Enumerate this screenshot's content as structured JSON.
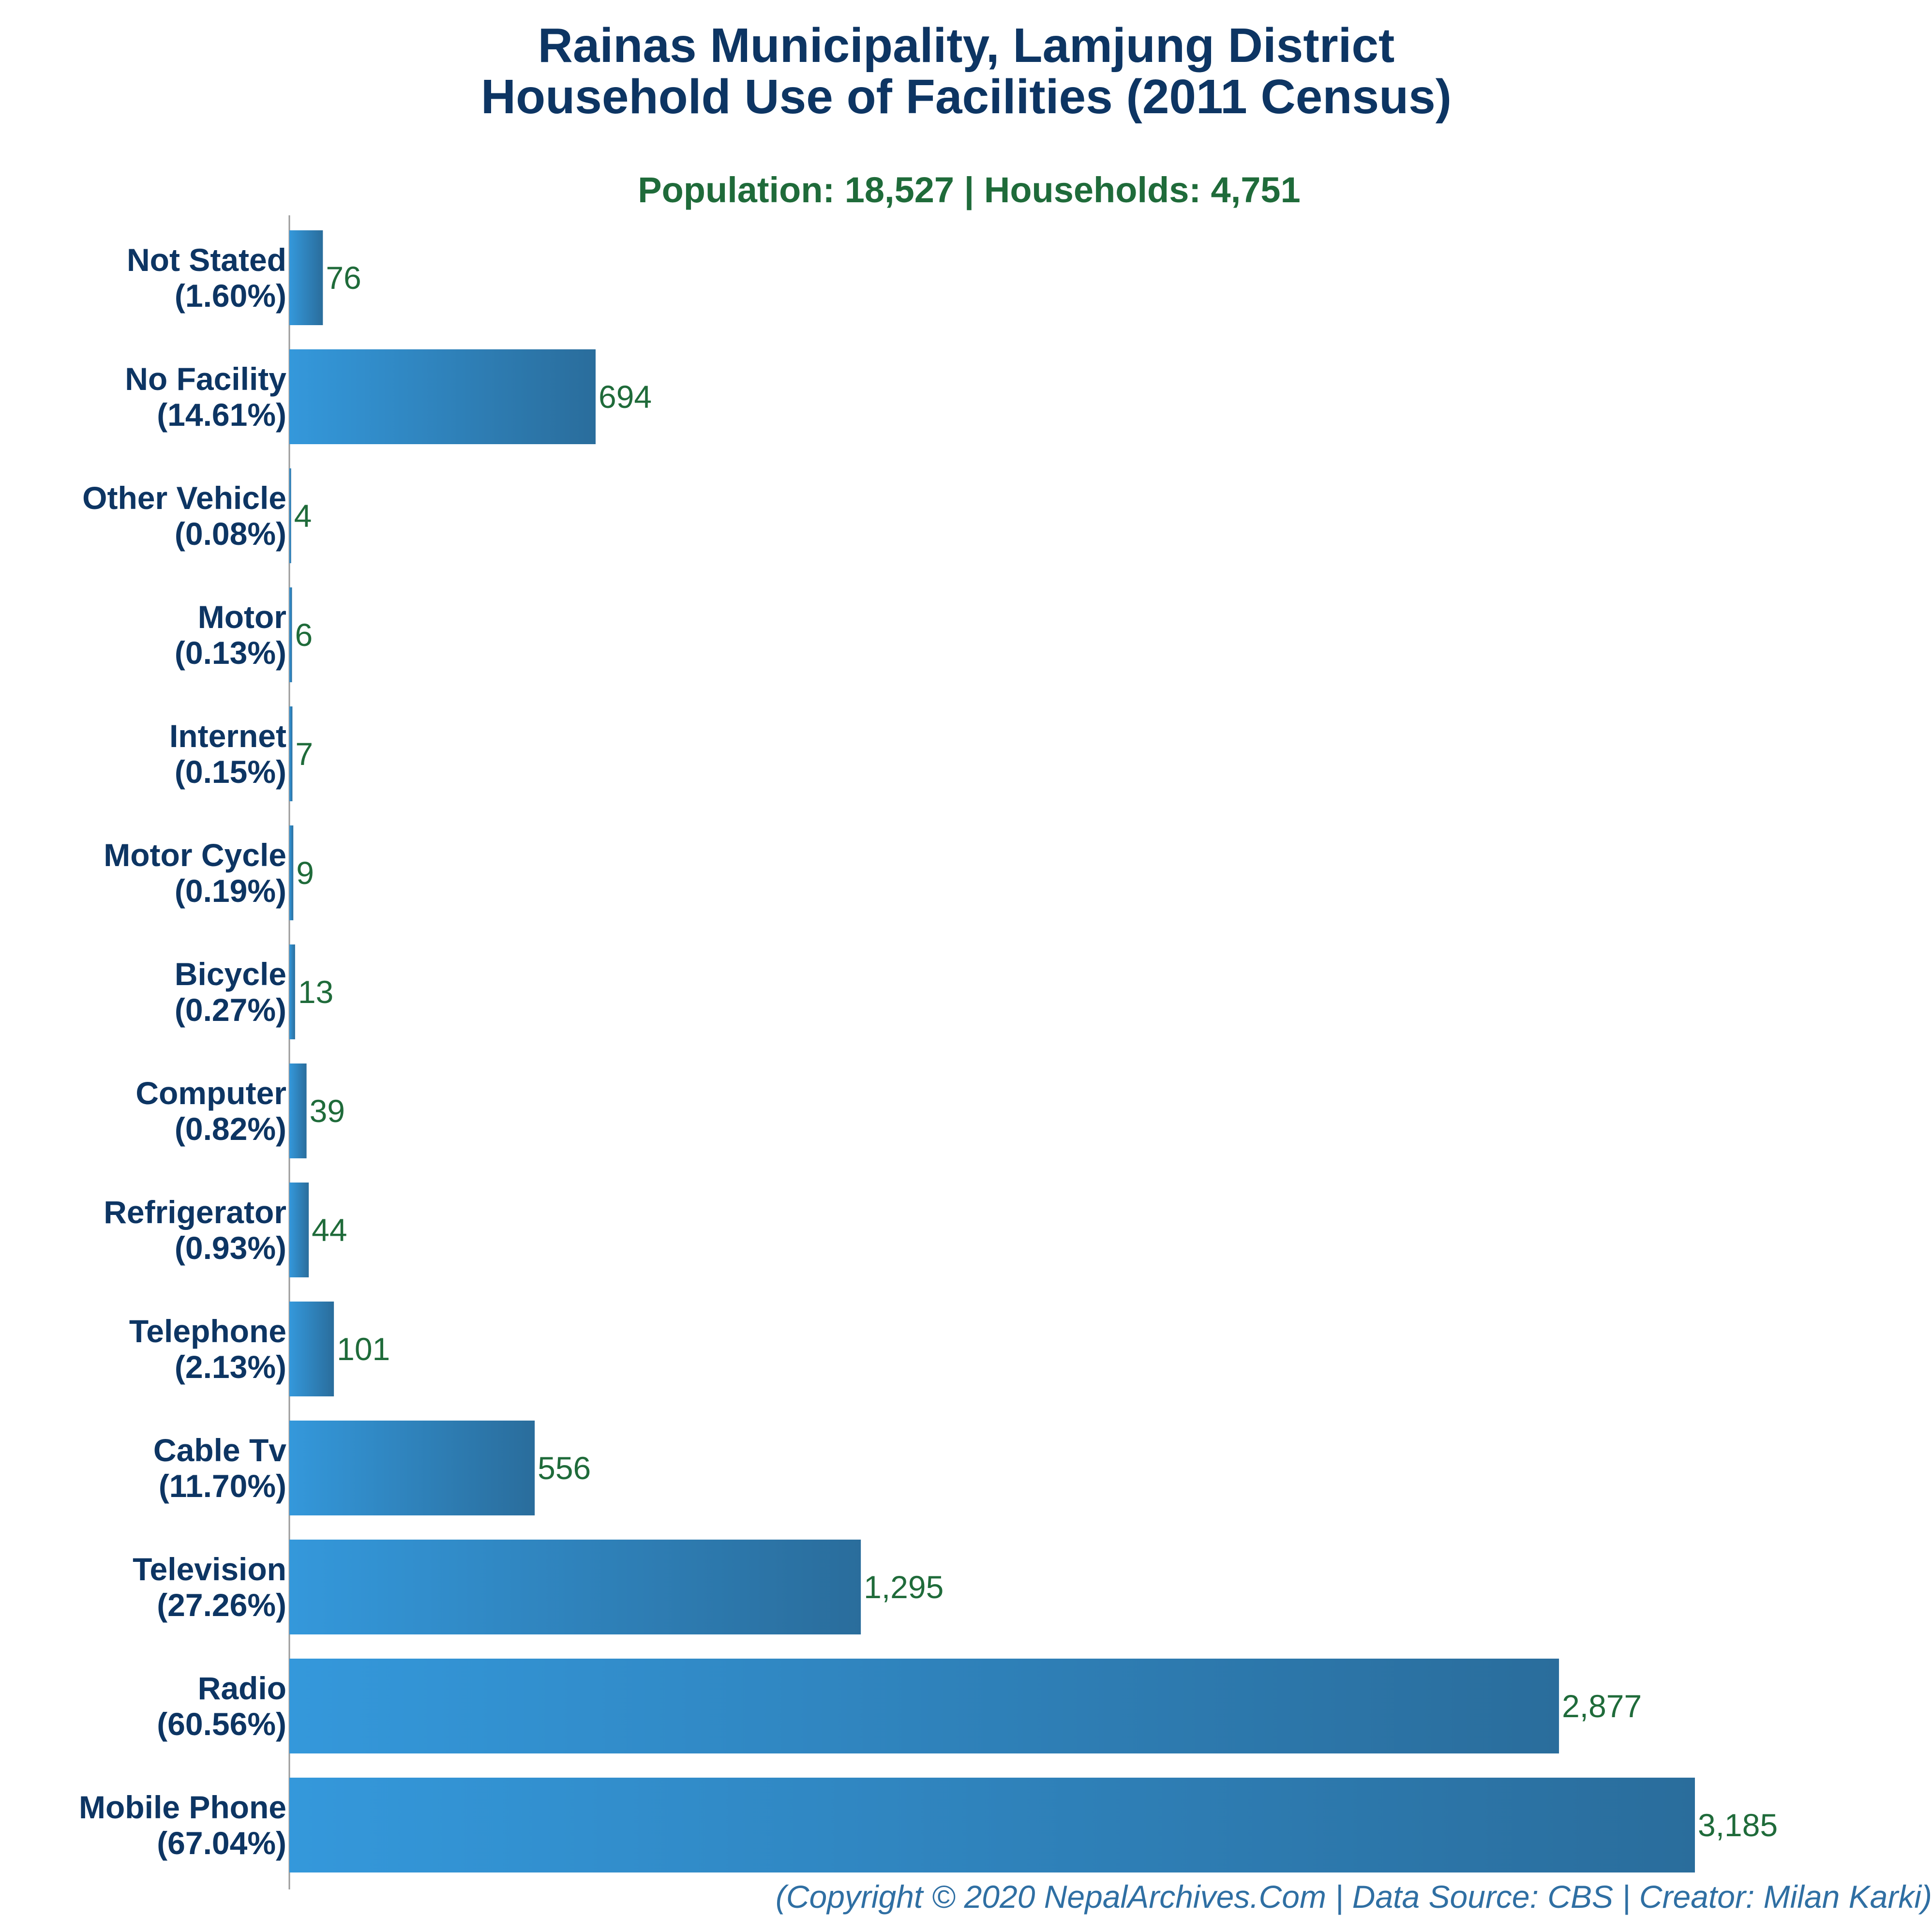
{
  "colors": {
    "title": "#0d3563",
    "subtitle": "#1f6b3a",
    "category_label": "#0d3563",
    "value_label": "#1f6b3a",
    "footer": "#2f6fa3",
    "bar_start": "#3498db",
    "bar_end": "#2a6d9c",
    "axis": "#999999"
  },
  "chart_data": {
    "type": "bar",
    "orientation": "horizontal",
    "title_line1": "Rainas Municipality, Lamjung District",
    "title_line2": "Household Use of Facilities (2011 Census)",
    "subtitle": "Population: 18,527 | Households: 4,751",
    "footer": "(Copyright © 2020 NepalArchives.Com | Data Source: CBS | Creator: Milan Karki)",
    "xlim": [
      0,
      3185
    ],
    "grid": false,
    "legend": "none",
    "categories": [
      {
        "name": "Not Stated",
        "percent": "(1.60%)",
        "value": 76,
        "value_label": "76"
      },
      {
        "name": "No Facility",
        "percent": "(14.61%)",
        "value": 694,
        "value_label": "694"
      },
      {
        "name": "Other Vehicle",
        "percent": "(0.08%)",
        "value": 4,
        "value_label": "4"
      },
      {
        "name": "Motor",
        "percent": "(0.13%)",
        "value": 6,
        "value_label": "6"
      },
      {
        "name": "Internet",
        "percent": "(0.15%)",
        "value": 7,
        "value_label": "7"
      },
      {
        "name": "Motor Cycle",
        "percent": "(0.19%)",
        "value": 9,
        "value_label": "9"
      },
      {
        "name": "Bicycle",
        "percent": "(0.27%)",
        "value": 13,
        "value_label": "13"
      },
      {
        "name": "Computer",
        "percent": "(0.82%)",
        "value": 39,
        "value_label": "39"
      },
      {
        "name": "Refrigerator",
        "percent": "(0.93%)",
        "value": 44,
        "value_label": "44"
      },
      {
        "name": "Telephone",
        "percent": "(2.13%)",
        "value": 101,
        "value_label": "101"
      },
      {
        "name": "Cable Tv",
        "percent": "(11.70%)",
        "value": 556,
        "value_label": "556"
      },
      {
        "name": "Television",
        "percent": "(27.26%)",
        "value": 1295,
        "value_label": "1,295"
      },
      {
        "name": "Radio",
        "percent": "(60.56%)",
        "value": 2877,
        "value_label": "2,877"
      },
      {
        "name": "Mobile Phone",
        "percent": "(67.04%)",
        "value": 3185,
        "value_label": "3,185"
      }
    ]
  }
}
